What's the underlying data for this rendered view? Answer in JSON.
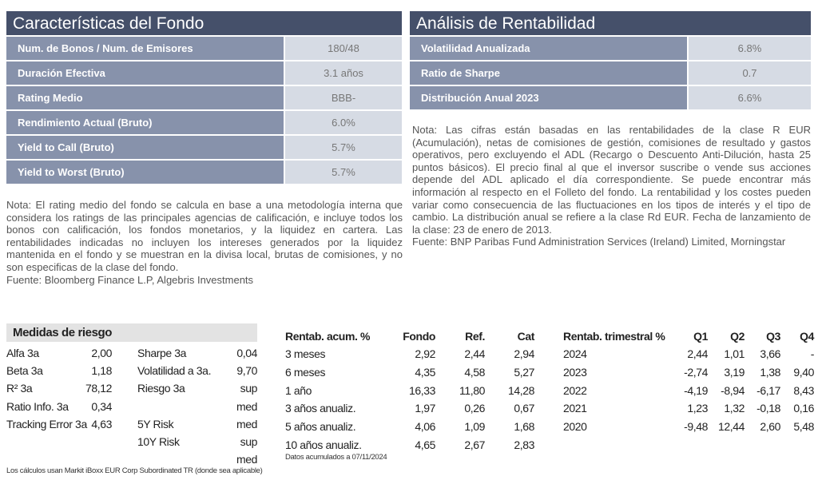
{
  "caracteristicas": {
    "title": "Características del Fondo",
    "rows": [
      {
        "label": "Num. de Bonos / Num. de Emisores",
        "value": "180/48"
      },
      {
        "label": "Duración Efectiva",
        "value": "3.1 años"
      },
      {
        "label": "Rating Medio",
        "value": "BBB-"
      },
      {
        "label": "Rendimiento Actual (Bruto)",
        "value": "6.0%"
      },
      {
        "label": "Yield to Call (Bruto)",
        "value": "5.7%"
      },
      {
        "label": "Yield to Worst (Bruto)",
        "value": "5.7%"
      }
    ],
    "note": "Nota: El rating medio del fondo se calcula en base a una metodología interna que considera los ratings de las principales agencias de calificación, e incluye todos los bonos con calificación, los fondos monetarios, y la liquidez en cartera. Las rentabilidades indicadas no incluyen los intereses generados por la liquidez mantenida en el fondo y se muestran en la divisa local, brutas de comisiones, y no son especificas de la clase del fondo.",
    "source": "Fuente: Bloomberg Finance L.P, Algebris Investments"
  },
  "rentabilidad": {
    "title": "Análisis de Rentabilidad",
    "rows": [
      {
        "label": "Volatilidad Anualizada",
        "value": "6.8%"
      },
      {
        "label": "Ratio de Sharpe",
        "value": "0.7"
      },
      {
        "label": "Distribución Anual 2023",
        "value": "6.6%"
      }
    ],
    "note": "Nota: Las cifras están basadas en las rentabilidades de la clase R EUR (Acumulación), netas de comisiones de gestión, comisiones de resultado y gastos operativos, pero excluyendo el ADL (Recargo o Descuento Anti-Dilución, hasta 25 puntos básicos). El precio final al que el inversor suscribe o vende sus acciones depende del ADL aplicado el día correspondiente. Se puede encontrar más información al respecto en el Folleto del fondo. La rentabilidad y los costes pueden variar como consecuencia de las fluctuaciones en los tipos de interés y el tipo de cambio. La distribución anual se refiere a la clase Rd EUR. Fecha de lanzamiento de la clase: 23 de enero de 2013.",
    "source": "Fuente: BNP Paribas Fund Administration Services (Ireland) Limited, Morningstar"
  },
  "riesgo": {
    "title": "Medidas de riesgo",
    "rows": [
      [
        "Alfa 3a",
        "2,00",
        "Sharpe 3a",
        "0,04"
      ],
      [
        "Beta 3a",
        "1,18",
        "Volatilidad a 3a.",
        "9,70"
      ],
      [
        "R² 3a",
        "78,12",
        "Riesgo 3a",
        "sup"
      ],
      [
        "Ratio Info. 3a",
        "0,34",
        "",
        "med"
      ],
      [
        "Tracking Error 3a",
        "4,63",
        "5Y Risk",
        "med"
      ],
      [
        "",
        "",
        "10Y Risk",
        "sup"
      ],
      [
        "",
        "",
        "",
        "med"
      ]
    ],
    "footnote": "Los cálculos usan Markit iBoxx EUR Corp Subordinated TR (donde sea aplicable)"
  },
  "acumulada": {
    "headers": [
      "Rentab. acum. %",
      "Fondo",
      "Ref.",
      "Cat"
    ],
    "rows": [
      [
        "3 meses",
        "2,92",
        "2,44",
        "2,94"
      ],
      [
        "6 meses",
        "4,35",
        "4,58",
        "5,27"
      ],
      [
        "1 año",
        "16,33",
        "11,80",
        "14,28"
      ],
      [
        "3 años anualiz.",
        "1,97",
        "0,26",
        "0,67"
      ],
      [
        "5 años anualiz.",
        "4,06",
        "1,09",
        "1,68"
      ],
      [
        "10 años anualiz.",
        "4,65",
        "2,67",
        "2,83"
      ]
    ],
    "footnote": "Datos acumulados a 07/11/2024"
  },
  "trimestral": {
    "headers": [
      "Rentab. trimestral %",
      "Q1",
      "Q2",
      "Q3",
      "Q4"
    ],
    "rows": [
      [
        "2024",
        "2,44",
        "1,01",
        "3,66",
        "-"
      ],
      [
        "2023",
        "-2,74",
        "3,19",
        "1,38",
        "9,40"
      ],
      [
        "2022",
        "-4,19",
        "-8,94",
        "-6,17",
        "8,43"
      ],
      [
        "2021",
        "1,23",
        "1,32",
        "-0,18",
        "0,16"
      ],
      [
        "2020",
        "-9,48",
        "12,44",
        "2,60",
        "5,48"
      ]
    ]
  }
}
